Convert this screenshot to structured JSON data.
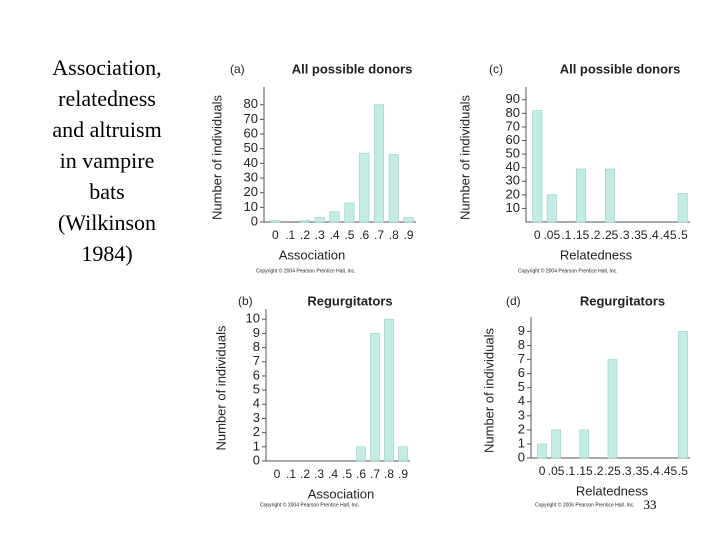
{
  "slide": {
    "text": [
      "Association,",
      "relatedness",
      "and altruism",
      "in vampire",
      "bats",
      "(Wilkinson",
      "1984)"
    ],
    "page_number": "33"
  },
  "chart_data": [
    {
      "type": "bar",
      "panel": "(a)",
      "title": "All possible donors",
      "x_label": "Association",
      "y_label": "Number of individuals",
      "note": "Copyright © 2004 Pearson Prentice Hall, Inc.",
      "categories": [
        "0",
        ".1",
        ".2",
        ".3",
        ".4",
        ".5",
        ".6",
        ".7",
        ".8",
        ".9"
      ],
      "values": [
        1,
        0,
        1,
        3,
        7,
        13,
        47,
        80,
        46,
        3
      ],
      "color": "#c4ece4",
      "ylim": [
        0,
        88
      ],
      "yticks": [
        0,
        10,
        20,
        30,
        40,
        50,
        60,
        70,
        80
      ]
    },
    {
      "type": "bar",
      "panel": "(c)",
      "title": "All possible donors",
      "x_label": "Relatedness",
      "y_label": "Number of individuals",
      "note": "Copyright © 2004 Pearson Prentice Hall, Inc.",
      "categories": [
        "0",
        ".05",
        ".1",
        ".15",
        ".2",
        ".25",
        ".3",
        ".35",
        ".4",
        ".45",
        ".5"
      ],
      "values": [
        82,
        20,
        0,
        39,
        0,
        39,
        0,
        0,
        0,
        0,
        21
      ],
      "color": "#c4ece4",
      "ylim": [
        0,
        95
      ],
      "yticks": [
        10,
        20,
        30,
        40,
        50,
        60,
        70,
        80,
        90
      ]
    },
    {
      "type": "bar",
      "panel": "(b)",
      "title": "Regurgitators",
      "x_label": "Association",
      "y_label": "Number of individuals",
      "note": "Copyright © 2004 Pearson Prentice Hall, Inc.",
      "categories": [
        "0",
        ".1",
        ".2",
        ".3",
        ".4",
        ".5",
        ".6",
        ".7",
        ".8",
        ".9"
      ],
      "values": [
        0,
        0,
        0,
        0,
        0,
        0,
        1,
        9,
        10,
        1
      ],
      "color": "#c4ece4",
      "ylim": [
        0,
        10.3
      ],
      "yticks": [
        0,
        1,
        2,
        3,
        4,
        5,
        6,
        7,
        8,
        9,
        10
      ]
    },
    {
      "type": "bar",
      "panel": "(d)",
      "title": "Regurgitators",
      "x_label": "Relatedness",
      "y_label": "Number of individuals",
      "note": "Copyright © 2006 Pearson Prentice Hall, Inc.",
      "categories": [
        "0",
        ".05",
        ".1",
        ".15",
        ".2",
        ".25",
        ".3",
        ".35",
        ".4",
        ".45",
        ".5"
      ],
      "values": [
        1,
        2,
        0,
        2,
        0,
        7,
        0,
        0,
        0,
        0,
        9
      ],
      "color": "#c4ece4",
      "ylim": [
        0,
        9.6
      ],
      "yticks": [
        0,
        1,
        2,
        3,
        4,
        5,
        6,
        7,
        8,
        9
      ]
    }
  ]
}
